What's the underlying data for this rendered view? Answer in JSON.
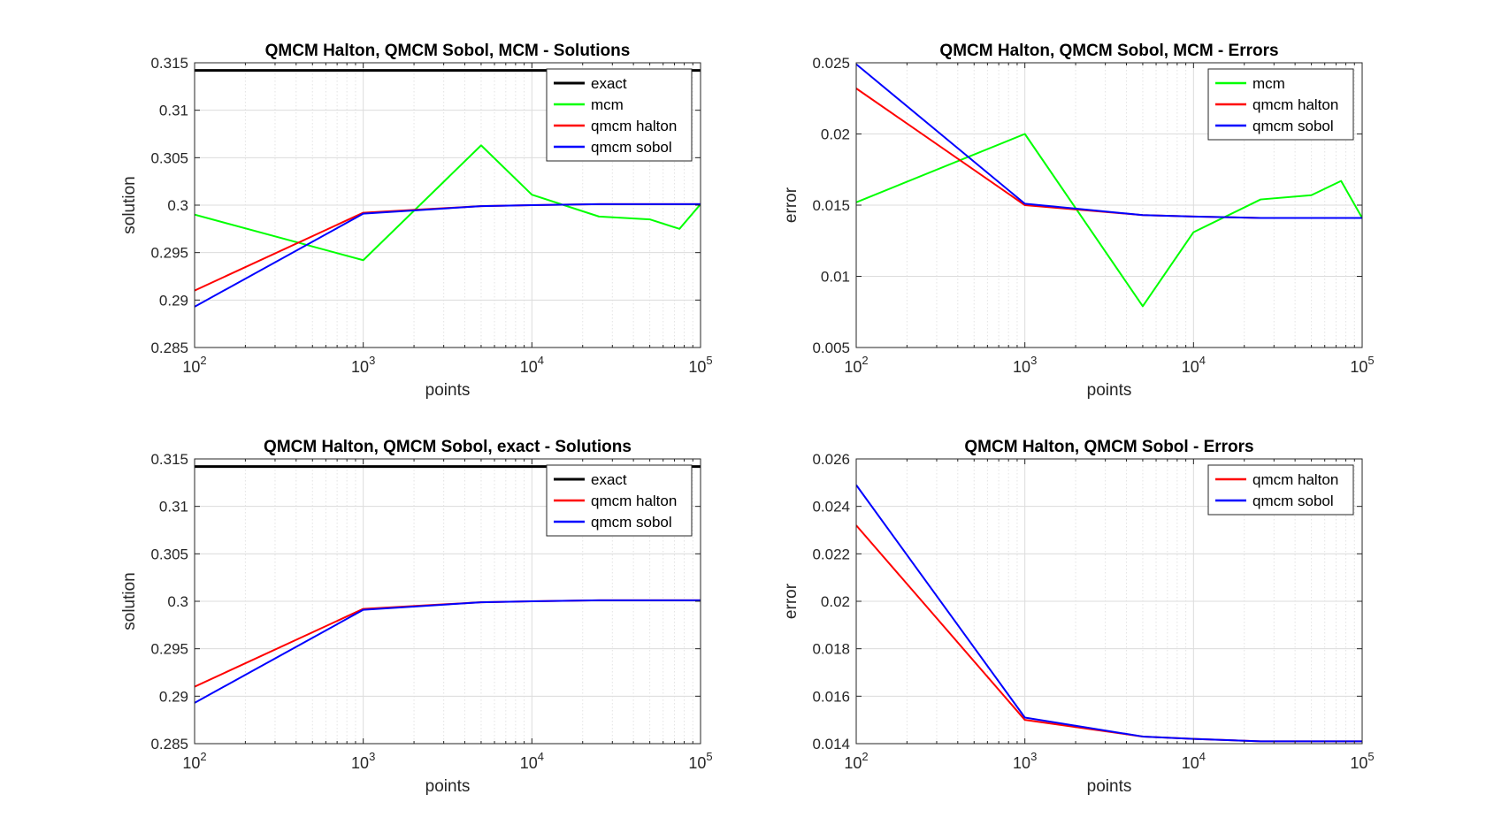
{
  "chart_data": [
    {
      "type": "line",
      "title": "QMCM Halton, QMCM Sobol, MCM - Solutions",
      "xlabel": "points",
      "ylabel": "solution",
      "xscale": "log",
      "xlim": [
        100,
        100000
      ],
      "ylim": [
        0.285,
        0.315
      ],
      "xticks": [
        100,
        1000,
        10000,
        100000
      ],
      "yticks": [
        "0.285",
        "0.29",
        "0.295",
        "0.3",
        "0.305",
        "0.31",
        "0.315"
      ],
      "grid": true,
      "legend_position": "top-right",
      "series": [
        {
          "name": "exact",
          "color": "#000000",
          "x": [
            100,
            100000
          ],
          "y": [
            0.3142,
            0.3142
          ]
        },
        {
          "name": "mcm",
          "color": "#00ff00",
          "x": [
            100,
            1000,
            5000,
            10000,
            25000,
            50000,
            75000,
            100000
          ],
          "y": [
            0.299,
            0.2942,
            0.3063,
            0.3011,
            0.2988,
            0.2985,
            0.2975,
            0.3001
          ]
        },
        {
          "name": "qmcm halton",
          "color": "#ff0000",
          "x": [
            100,
            1000,
            5000,
            10000,
            25000,
            50000,
            75000,
            100000
          ],
          "y": [
            0.291,
            0.2992,
            0.2999,
            0.3,
            0.3001,
            0.3001,
            0.3001,
            0.3001
          ]
        },
        {
          "name": "qmcm sobol",
          "color": "#0000ff",
          "x": [
            100,
            1000,
            5000,
            10000,
            25000,
            50000,
            75000,
            100000
          ],
          "y": [
            0.2893,
            0.2991,
            0.2999,
            0.3,
            0.3001,
            0.3001,
            0.3001,
            0.3001
          ]
        }
      ]
    },
    {
      "type": "line",
      "title": "QMCM Halton, QMCM Sobol, MCM - Errors",
      "xlabel": "points",
      "ylabel": "error",
      "xscale": "log",
      "xlim": [
        100,
        100000
      ],
      "ylim": [
        0.005,
        0.025
      ],
      "xticks": [
        100,
        1000,
        10000,
        100000
      ],
      "yticks": [
        "0.005",
        "0.01",
        "0.015",
        "0.02",
        "0.025"
      ],
      "grid": true,
      "legend_position": "top-right",
      "series": [
        {
          "name": "mcm",
          "color": "#00ff00",
          "x": [
            100,
            1000,
            5000,
            10000,
            25000,
            50000,
            75000,
            100000
          ],
          "y": [
            0.0152,
            0.02,
            0.0079,
            0.0131,
            0.0154,
            0.0157,
            0.0167,
            0.0141
          ]
        },
        {
          "name": "qmcm halton",
          "color": "#ff0000",
          "x": [
            100,
            1000,
            5000,
            10000,
            25000,
            50000,
            75000,
            100000
          ],
          "y": [
            0.0232,
            0.015,
            0.0143,
            0.0142,
            0.0141,
            0.0141,
            0.0141,
            0.0141
          ]
        },
        {
          "name": "qmcm sobol",
          "color": "#0000ff",
          "x": [
            100,
            1000,
            5000,
            10000,
            25000,
            50000,
            75000,
            100000
          ],
          "y": [
            0.0249,
            0.0151,
            0.0143,
            0.0142,
            0.0141,
            0.0141,
            0.0141,
            0.0141
          ]
        }
      ]
    },
    {
      "type": "line",
      "title": "QMCM Halton, QMCM Sobol, exact - Solutions",
      "xlabel": "points",
      "ylabel": "solution",
      "xscale": "log",
      "xlim": [
        100,
        100000
      ],
      "ylim": [
        0.285,
        0.315
      ],
      "xticks": [
        100,
        1000,
        10000,
        100000
      ],
      "yticks": [
        "0.285",
        "0.29",
        "0.295",
        "0.3",
        "0.305",
        "0.31",
        "0.315"
      ],
      "grid": true,
      "legend_position": "top-right",
      "series": [
        {
          "name": "exact",
          "color": "#000000",
          "x": [
            100,
            100000
          ],
          "y": [
            0.3142,
            0.3142
          ]
        },
        {
          "name": "qmcm halton",
          "color": "#ff0000",
          "x": [
            100,
            1000,
            5000,
            10000,
            25000,
            50000,
            75000,
            100000
          ],
          "y": [
            0.291,
            0.2992,
            0.2999,
            0.3,
            0.3001,
            0.3001,
            0.3001,
            0.3001
          ]
        },
        {
          "name": "qmcm sobol",
          "color": "#0000ff",
          "x": [
            100,
            1000,
            5000,
            10000,
            25000,
            50000,
            75000,
            100000
          ],
          "y": [
            0.2893,
            0.2991,
            0.2999,
            0.3,
            0.3001,
            0.3001,
            0.3001,
            0.3001
          ]
        }
      ]
    },
    {
      "type": "line",
      "title": "QMCM Halton, QMCM Sobol - Errors",
      "xlabel": "points",
      "ylabel": "error",
      "xscale": "log",
      "xlim": [
        100,
        100000
      ],
      "ylim": [
        0.014,
        0.026
      ],
      "xticks": [
        100,
        1000,
        10000,
        100000
      ],
      "yticks": [
        "0.014",
        "0.016",
        "0.018",
        "0.02",
        "0.022",
        "0.024",
        "0.026"
      ],
      "grid": true,
      "legend_position": "top-right",
      "series": [
        {
          "name": "qmcm halton",
          "color": "#ff0000",
          "x": [
            100,
            1000,
            5000,
            10000,
            25000,
            50000,
            75000,
            100000
          ],
          "y": [
            0.0232,
            0.015,
            0.0143,
            0.0142,
            0.0141,
            0.0141,
            0.0141,
            0.0141
          ]
        },
        {
          "name": "qmcm sobol",
          "color": "#0000ff",
          "x": [
            100,
            1000,
            5000,
            10000,
            25000,
            50000,
            75000,
            100000
          ],
          "y": [
            0.0249,
            0.0151,
            0.0143,
            0.0142,
            0.0141,
            0.0141,
            0.0141,
            0.0141
          ]
        }
      ]
    }
  ]
}
